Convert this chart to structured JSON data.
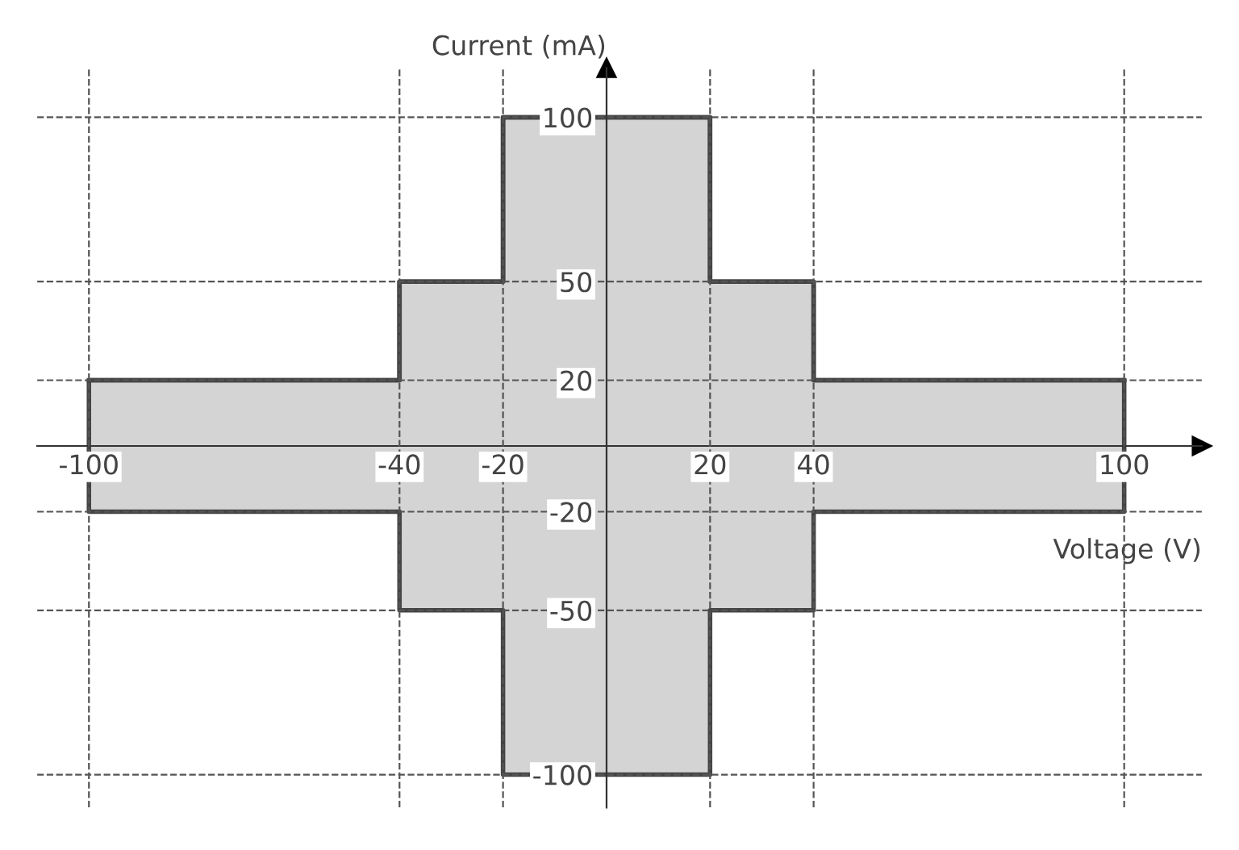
{
  "chart_data": {
    "type": "step",
    "xlabel": "Voltage (V)",
    "ylabel": "Current (mA)",
    "series": [
      {
        "color": "#444444",
        "x": [
          -100,
          -40,
          -20,
          20,
          40,
          100
        ],
        "values": [
          20,
          50,
          100,
          50,
          20,
          20
        ],
        "lower": [
          -20,
          -50,
          -100,
          -50,
          -20,
          -20
        ],
        "upper": [
          20,
          50,
          100,
          50,
          20,
          20
        ]
      }
    ],
    "xlim": [
      -110,
      115
    ],
    "ylim": [
      -110,
      115
    ],
    "xticks": [
      -100,
      -40,
      -20,
      20,
      40,
      100
    ],
    "yticks": [
      -100,
      -50,
      -20,
      20,
      50,
      100
    ],
    "grid": true,
    "legend": false
  }
}
